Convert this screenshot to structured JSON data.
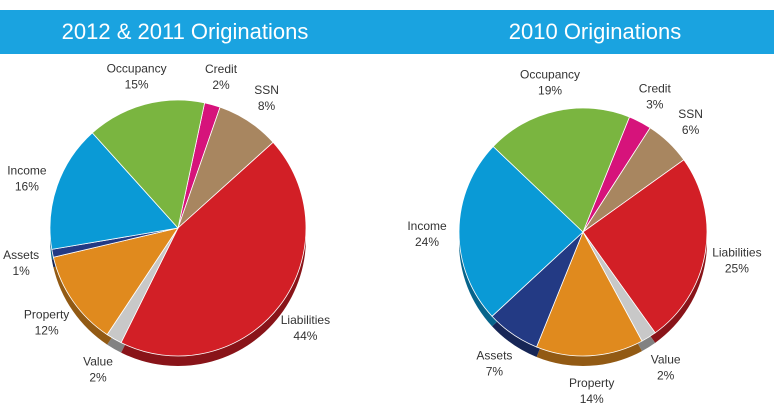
{
  "chart_data": [
    {
      "type": "pie",
      "title": "2012 & 2011 Originations",
      "categories": [
        "Credit",
        "SSN",
        "Liabilities",
        "Value",
        "Property",
        "Assets",
        "Income",
        "Occupancy"
      ],
      "values": [
        2,
        8,
        44,
        2,
        12,
        1,
        16,
        15
      ],
      "value_labels": [
        "2%",
        "8%",
        "44%",
        "2%",
        "12%",
        "1%",
        "16%",
        "15%"
      ],
      "colors": [
        "#d6137b",
        "#a88660",
        "#d21f26",
        "#c8c8c8",
        "#e08a1e",
        "#233a84",
        "#0a9ad6",
        "#7ab540"
      ]
    },
    {
      "type": "pie",
      "title": "2010 Originations",
      "categories": [
        "Credit",
        "SSN",
        "Liabilities",
        "Value",
        "Property",
        "Assets",
        "Income",
        "Occupancy"
      ],
      "values": [
        3,
        6,
        25,
        2,
        14,
        7,
        24,
        19
      ],
      "value_labels": [
        "3%",
        "6%",
        "25%",
        "2%",
        "14%",
        "7%",
        "24%",
        "19%"
      ],
      "colors": [
        "#d6137b",
        "#a88660",
        "#d21f26",
        "#c8c8c8",
        "#e08a1e",
        "#233a84",
        "#0a9ad6",
        "#7ab540"
      ]
    }
  ]
}
